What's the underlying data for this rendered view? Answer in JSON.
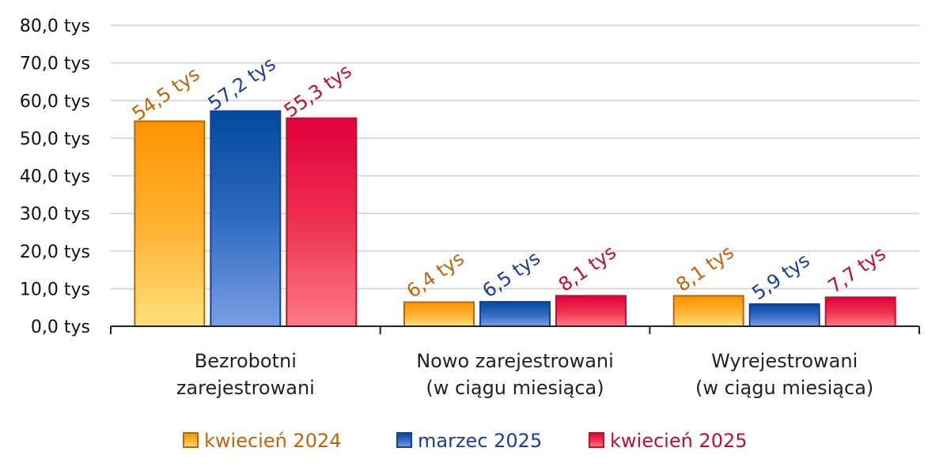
{
  "chart_data": {
    "type": "bar",
    "categories": [
      [
        "Bezrobotni",
        "zarejestrowani"
      ],
      [
        "Nowo zarejestrowani",
        "(w ciągu miesiąca)"
      ],
      [
        "Wyrejestrowani",
        "(w ciągu miesiąca)"
      ]
    ],
    "series": [
      {
        "name": "kwiecień 2024",
        "values": [
          54.5,
          6.4,
          8.1
        ],
        "labels": [
          "54,5 tys",
          "6,4 tys",
          "8,1 tys"
        ],
        "color": "#ff9900",
        "label_color": "#c0640a"
      },
      {
        "name": "marzec 2025",
        "values": [
          57.2,
          6.5,
          5.9
        ],
        "labels": [
          "57,2 tys",
          "6,5 tys",
          "5,9 tys"
        ],
        "color": "#0a4fa0",
        "label_color": "#1a3e96"
      },
      {
        "name": "kwiecień 2025",
        "values": [
          55.3,
          8.1,
          7.7
        ],
        "labels": [
          "55,3 tys",
          "8,1 tys",
          "7,7 tys"
        ],
        "color": "#e0003c",
        "label_color": "#c0102a"
      }
    ],
    "yticks": [
      0,
      10,
      20,
      30,
      40,
      50,
      60,
      70,
      80
    ],
    "ytick_labels": [
      "0,0 tys",
      "10,0 tys",
      "20,0 tys",
      "30,0 tys",
      "40,0 tys",
      "50,0 tys",
      "60,0 tys",
      "70,0 tys",
      "80,0 tys"
    ],
    "ylim": [
      0,
      80
    ],
    "grid": true,
    "legend": "bottom",
    "title": "",
    "xlabel": "",
    "ylabel": ""
  }
}
